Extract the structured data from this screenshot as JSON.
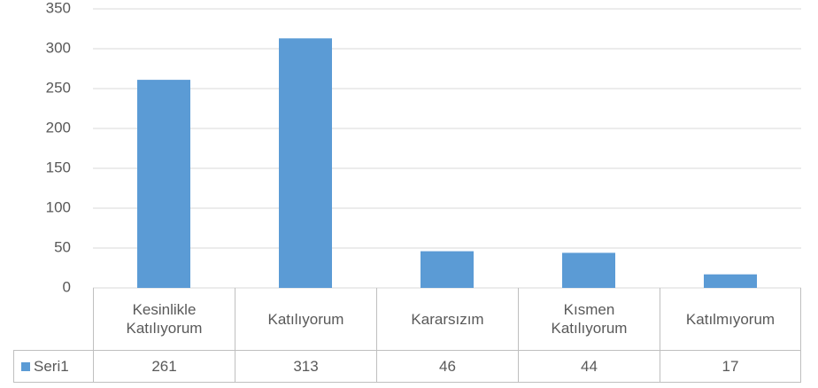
{
  "chart_data": {
    "type": "bar",
    "categories": [
      "Kesinlikle Katılıyorum",
      "Katılıyorum",
      "Kararsızım",
      "Kısmen Katılıyorum",
      "Katılmıyorum"
    ],
    "series": [
      {
        "name": "Seri1",
        "color": "#5b9bd5",
        "values": [
          261,
          313,
          46,
          44,
          17
        ]
      }
    ],
    "ylim": [
      0,
      350
    ],
    "yticks": [
      0,
      50,
      100,
      150,
      200,
      250,
      300,
      350
    ],
    "grid": true,
    "data_table": true
  }
}
